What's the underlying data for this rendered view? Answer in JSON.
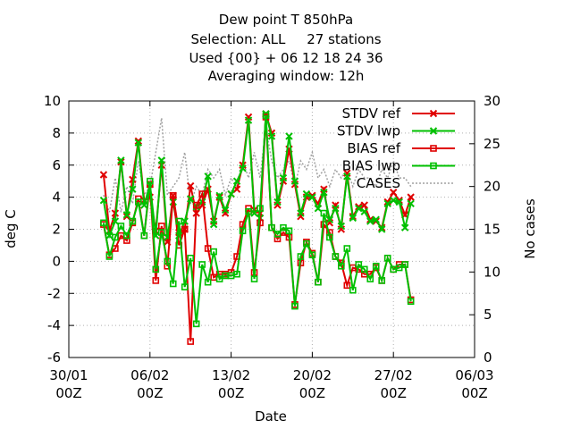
{
  "title_lines": [
    "Dew point T 850hPa",
    "Selection: ALL     27 stations",
    "Used {00} + 06 12 18 24 36",
    "Averaging window: 12h"
  ],
  "chart_data": {
    "type": "line",
    "title": "Dew point T 850hPa",
    "xlabel": "Date",
    "ylabel": "deg C",
    "y2label": "No cases",
    "x_ticks": [
      {
        "day": 0,
        "label": [
          "30/01",
          "00Z"
        ]
      },
      {
        "day": 7,
        "label": [
          "06/02",
          "00Z"
        ]
      },
      {
        "day": 14,
        "label": [
          "13/02",
          "00Z"
        ]
      },
      {
        "day": 21,
        "label": [
          "20/02",
          "00Z"
        ]
      },
      {
        "day": 28,
        "label": [
          "27/02",
          "00Z"
        ]
      },
      {
        "day": 35,
        "label": [
          "06/03",
          "00Z"
        ]
      }
    ],
    "xlim_days": [
      0,
      35
    ],
    "ylim": [
      -6,
      10
    ],
    "y_ticks": [
      -6,
      -4,
      -2,
      0,
      2,
      4,
      6,
      8,
      10
    ],
    "y2lim": [
      0,
      30
    ],
    "y2_ticks": [
      0,
      5,
      10,
      15,
      20,
      25,
      30
    ],
    "grid": true,
    "legend_position": "top-right",
    "x": [
      3,
      3.5,
      4,
      4.5,
      5,
      5.5,
      6,
      6.5,
      7,
      7.5,
      8,
      8.5,
      9,
      9.5,
      10,
      10.5,
      11,
      11.5,
      12,
      12.5,
      13,
      13.5,
      14,
      14.5,
      15,
      15.5,
      16,
      16.5,
      17,
      17.5,
      18,
      18.5,
      19,
      19.5,
      20,
      20.5,
      21,
      21.5,
      22,
      22.5,
      23,
      23.5,
      24,
      24.5,
      25,
      25.5,
      26,
      26.5,
      27,
      27.5,
      28,
      28.5,
      29,
      29.5
    ],
    "series": [
      {
        "name": "STDV ref",
        "color": "#e00000",
        "marker": "x",
        "values": [
          5.4,
          1.9,
          3.0,
          6.2,
          2.8,
          5.1,
          7.5,
          3.8,
          4.0,
          1.9,
          6.0,
          1.2,
          4.1,
          1.8,
          2.0,
          4.7,
          3.0,
          3.5,
          4.5,
          2.5,
          4.0,
          3.0,
          4.2,
          4.5,
          6.0,
          9.0,
          3.2,
          3.0,
          9.2,
          8.0,
          3.5,
          5.0,
          7.0,
          4.8,
          2.8,
          4.0,
          4.1,
          3.6,
          4.5,
          2.4,
          3.5,
          2.0,
          5.5,
          2.8,
          3.4,
          3.5,
          2.6,
          2.5,
          2.1,
          3.7,
          4.3,
          3.8,
          2.9,
          4.0
        ]
      },
      {
        "name": "STDV lwp",
        "color": "#00c000",
        "marker": "x",
        "values": [
          3.8,
          1.6,
          2.5,
          6.3,
          2.9,
          4.5,
          7.4,
          3.5,
          4.8,
          1.6,
          6.3,
          1.5,
          3.7,
          1.6,
          2.5,
          3.9,
          3.4,
          3.7,
          5.3,
          2.3,
          4.1,
          3.2,
          4.2,
          5.0,
          5.8,
          8.8,
          3.0,
          2.7,
          9.2,
          7.8,
          3.7,
          5.2,
          7.8,
          5.0,
          3.0,
          4.2,
          4.0,
          3.3,
          4.3,
          2.6,
          3.3,
          2.2,
          5.3,
          2.7,
          3.3,
          3.1,
          2.5,
          2.6,
          2.0,
          3.6,
          3.8,
          3.7,
          2.1,
          3.6
        ]
      },
      {
        "name": "BIAS ref",
        "color": "#e00000",
        "marker": "square",
        "values": [
          2.3,
          0.4,
          0.8,
          1.6,
          1.3,
          2.4,
          3.9,
          1.6,
          4.8,
          -1.2,
          2.2,
          -0.3,
          4.1,
          1.0,
          2.0,
          -5.0,
          3.5,
          4.2,
          0.8,
          -1.0,
          -0.8,
          -0.8,
          -0.7,
          0.3,
          2.3,
          3.3,
          -0.7,
          2.4,
          9.0,
          2.1,
          1.4,
          1.8,
          1.5,
          -2.7,
          -0.1,
          1.2,
          0.5,
          -1.3,
          2.3,
          1.8,
          0.3,
          -0.1,
          -1.5,
          -0.4,
          -0.5,
          -0.8,
          -0.8,
          -0.4,
          -1.2,
          0.2,
          -0.5,
          -0.2,
          -0.2,
          -2.4
        ]
      },
      {
        "name": "BIAS lwp",
        "color": "#00c000",
        "marker": "square",
        "values": [
          2.4,
          0.3,
          1.5,
          2.2,
          1.6,
          2.5,
          3.7,
          1.6,
          5.0,
          -0.5,
          1.8,
          0.0,
          -1.4,
          2.5,
          -1.6,
          0.2,
          -3.9,
          -0.2,
          -1.3,
          0.6,
          -1.1,
          -0.9,
          -0.9,
          -0.8,
          1.9,
          3.1,
          -1.1,
          3.3,
          9.1,
          2.1,
          1.7,
          2.1,
          1.9,
          -2.8,
          0.3,
          1.1,
          0.4,
          -1.3,
          3.0,
          1.5,
          0.3,
          -0.3,
          0.8,
          -1.8,
          -0.2,
          -0.5,
          -1.1,
          -0.3,
          -1.2,
          0.2,
          -0.5,
          -0.4,
          -0.2,
          -2.5
        ]
      },
      {
        "name": "CASES",
        "color": "#a0a0a0",
        "dash": "dotted",
        "axis": "y2",
        "values": [
          19,
          17,
          21,
          17,
          20,
          18,
          23,
          19,
          20,
          24,
          28,
          19,
          20,
          21,
          24,
          18,
          20,
          19,
          22,
          21,
          22,
          19,
          21,
          20,
          23,
          21,
          24,
          21,
          27,
          23,
          21,
          22,
          23,
          20,
          23,
          22,
          24,
          21,
          22,
          20,
          22,
          21,
          22,
          20,
          22,
          21,
          21,
          20,
          22,
          21,
          23,
          21,
          21,
          20
        ]
      }
    ]
  }
}
